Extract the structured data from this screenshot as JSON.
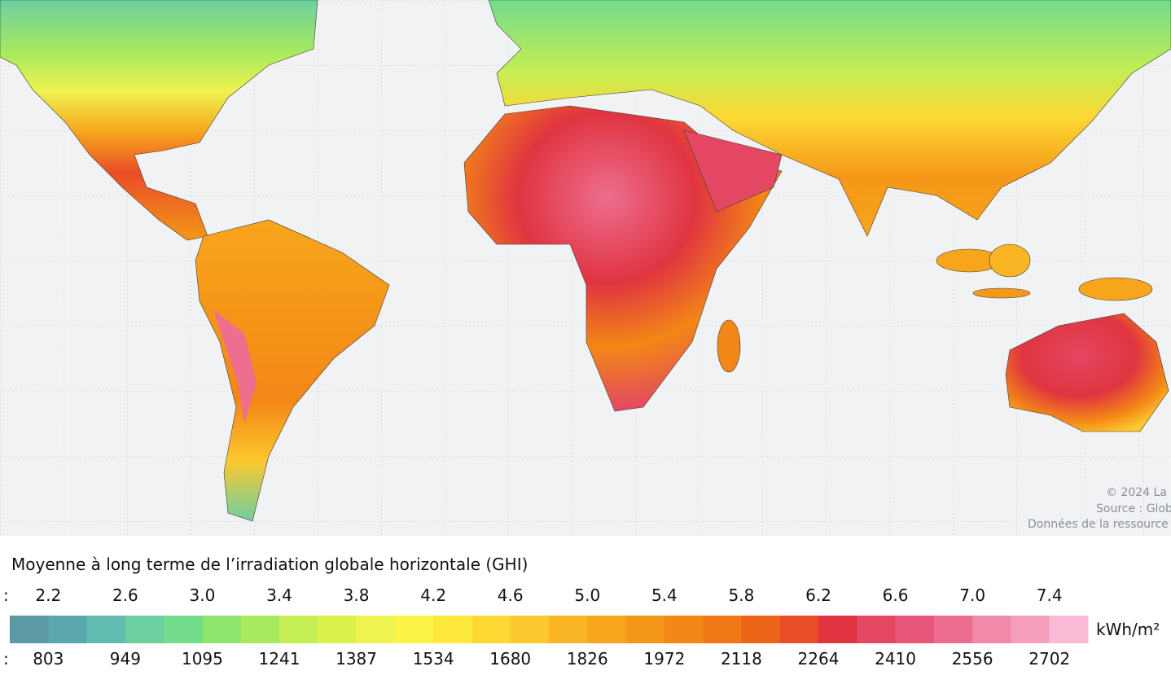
{
  "map": {
    "credits": [
      "© 2024 La",
      "Source : Glob",
      "Données de la ressource"
    ]
  },
  "legend": {
    "title": "Moyenne à long terme de l’irradiation globale horizontale (GHI)",
    "top_prefix": ":",
    "bottom_prefix": ":",
    "unit": "kWh/m²",
    "top_labels": [
      "2.2",
      "2.6",
      "3.0",
      "3.4",
      "3.8",
      "4.2",
      "4.6",
      "5.0",
      "5.4",
      "5.8",
      "6.2",
      "6.6",
      "7.0",
      "7.4"
    ],
    "bottom_labels": [
      "803",
      "949",
      "1095",
      "1241",
      "1387",
      "1534",
      "1680",
      "1826",
      "1972",
      "2118",
      "2264",
      "2410",
      "2556",
      "2702"
    ],
    "colors": [
      "#5b9aa5",
      "#5aa8ad",
      "#62bbb0",
      "#6ccfa0",
      "#72dc8b",
      "#8ee56e",
      "#a8ea5f",
      "#c4ee54",
      "#dcf24c",
      "#eef350",
      "#fdf346",
      "#fde83c",
      "#fdd833",
      "#fdc82e",
      "#f9b524",
      "#f7a61c",
      "#f59718",
      "#f38716",
      "#ef7716",
      "#ec6418",
      "#e94d27",
      "#e03440",
      "#e44762",
      "#e7577a",
      "#ed6e8f",
      "#f189a8",
      "#f59fbd",
      "#fbbad5"
    ]
  }
}
